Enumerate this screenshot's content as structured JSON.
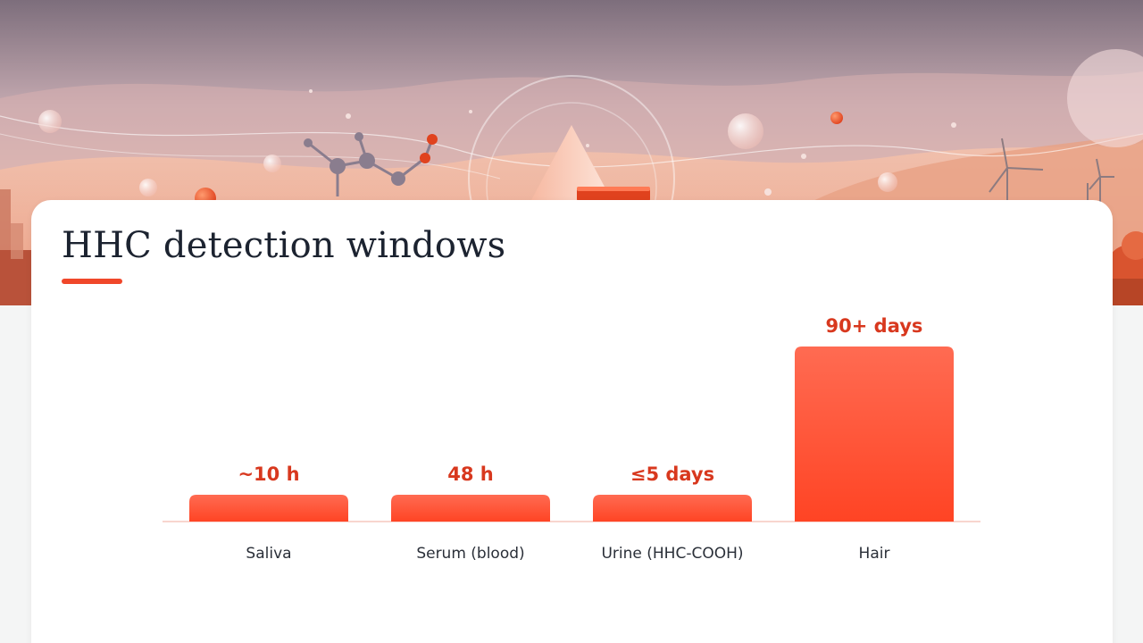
{
  "title": "HHC detection windows",
  "colors": {
    "accent": "#f0472a",
    "value_text": "#d8381e",
    "bar_top": "#ff6b52",
    "bar_bottom": "#ff4424",
    "baseline": "#f6c7bd"
  },
  "chart_data": {
    "type": "bar",
    "title": "HHC detection windows",
    "categories": [
      "Saliva",
      "Serum (blood)",
      "Urine (HHC-COOH)",
      "Hair"
    ],
    "values": [
      0.42,
      2,
      5,
      90
    ],
    "value_labels": [
      "~10 h",
      "48 h",
      "≤5 days",
      "90+ days"
    ],
    "ylim": [
      0,
      90
    ],
    "grid": false
  }
}
